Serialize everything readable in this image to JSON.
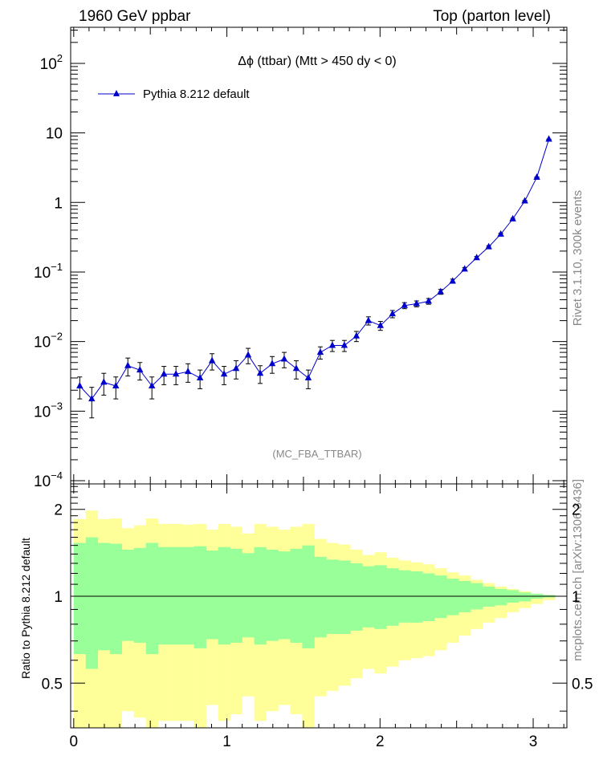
{
  "header": {
    "left": "1960 GeV ppbar",
    "right": "Top (parton level)"
  },
  "side": {
    "rivet": "Rivet 3.1.10,  300k events",
    "source": "mcplots.cern.ch [arXiv:1306.3436]"
  },
  "analysis_tag": "(MC_FBA_TTBAR)",
  "colors": {
    "series": "#0000cc",
    "band_outer": "#ffff99",
    "band_inner": "#99ff99",
    "muted_text": "#888888"
  },
  "chart_data": [
    {
      "type": "line",
      "title": "Δϕ (ttbar) (Mtt > 450 dy < 0)",
      "xlabel": "",
      "ylabel": "",
      "yscale": "log",
      "xlim": [
        -0.02,
        3.22
      ],
      "ylim": [
        9e-05,
        330
      ],
      "y_ticks": [
        {
          "value": 0.0001,
          "base": "10",
          "exp": "−4"
        },
        {
          "value": 0.001,
          "base": "10",
          "exp": "−3"
        },
        {
          "value": 0.01,
          "base": "10",
          "exp": "−2"
        },
        {
          "value": 0.1,
          "base": "10",
          "exp": "−1"
        },
        {
          "value": 1,
          "base": "1",
          "exp": ""
        },
        {
          "value": 10,
          "base": "10",
          "exp": ""
        },
        {
          "value": 100,
          "base": "10",
          "exp": "2"
        }
      ],
      "legend_position": "top-left",
      "series": [
        {
          "name": "Pythia 8.212 default",
          "marker": "triangle-up",
          "x": [
            0.0393,
            0.1178,
            0.1963,
            0.2749,
            0.3534,
            0.432,
            0.5105,
            0.589,
            0.6676,
            0.7461,
            0.8247,
            0.9032,
            0.9817,
            1.0603,
            1.1388,
            1.2174,
            1.2959,
            1.3744,
            1.453,
            1.5315,
            1.6101,
            1.6886,
            1.7671,
            1.8457,
            1.9242,
            2.0028,
            2.0813,
            2.1598,
            2.2384,
            2.3169,
            2.3955,
            2.474,
            2.5525,
            2.6311,
            2.7096,
            2.7882,
            2.8667,
            2.9452,
            3.0238,
            3.1023
          ],
          "y": [
            0.0023,
            0.0015,
            0.0026,
            0.0023,
            0.0045,
            0.0039,
            0.0023,
            0.0034,
            0.0034,
            0.0037,
            0.003,
            0.0053,
            0.0034,
            0.0041,
            0.0064,
            0.0035,
            0.0048,
            0.0056,
            0.0041,
            0.003,
            0.007,
            0.0088,
            0.0088,
            0.012,
            0.02,
            0.017,
            0.025,
            0.033,
            0.035,
            0.038,
            0.052,
            0.074,
            0.11,
            0.16,
            0.23,
            0.35,
            0.58,
            1.05,
            2.3,
            8.1
          ],
          "yerr": [
            0.0008,
            0.0007,
            0.0009,
            0.0008,
            0.0013,
            0.0011,
            0.0008,
            0.001,
            0.001,
            0.0011,
            0.0009,
            0.0014,
            0.001,
            0.0012,
            0.0016,
            0.001,
            0.0013,
            0.0014,
            0.0012,
            0.0009,
            0.0014,
            0.0016,
            0.0016,
            0.002,
            0.0027,
            0.0025,
            0.003,
            0.0033,
            0.0034,
            0.0036,
            0.0042,
            0.005,
            0.006,
            0.0072,
            0.0086,
            0.0105,
            0.013,
            0.017,
            0.025,
            0.047
          ]
        }
      ]
    },
    {
      "type": "area",
      "title": "",
      "xlabel": "",
      "ylabel": "Ratio to Pythia 8.212 default",
      "yscale": "log",
      "xlim": [
        -0.02,
        3.22
      ],
      "ylim": [
        0.35,
        2.45
      ],
      "x_ticks": [
        "0",
        "1",
        "2",
        "3"
      ],
      "y_ticks": [
        0.5,
        1,
        2
      ],
      "reference_line": 1,
      "bin_width": 0.0785,
      "x": [
        0.0393,
        0.1178,
        0.1963,
        0.2749,
        0.3534,
        0.432,
        0.5105,
        0.589,
        0.6676,
        0.7461,
        0.8247,
        0.9032,
        0.9817,
        1.0603,
        1.1388,
        1.2174,
        1.2959,
        1.3744,
        1.453,
        1.5315,
        1.6101,
        1.6886,
        1.7671,
        1.8457,
        1.9242,
        2.0028,
        2.0813,
        2.1598,
        2.2384,
        2.3169,
        2.3955,
        2.474,
        2.5525,
        2.6311,
        2.7096,
        2.7882,
        2.8667,
        2.9452,
        3.0238,
        3.1023
      ],
      "series": [
        {
          "name": "",
          "band": "outer",
          "low": [
            0.3,
            0.25,
            0.32,
            0.3,
            0.4,
            0.38,
            0.3,
            0.37,
            0.37,
            0.37,
            0.34,
            0.42,
            0.37,
            0.39,
            0.45,
            0.37,
            0.4,
            0.42,
            0.39,
            0.34,
            0.45,
            0.47,
            0.49,
            0.52,
            0.56,
            0.54,
            0.57,
            0.6,
            0.61,
            0.62,
            0.65,
            0.69,
            0.73,
            0.77,
            0.81,
            0.84,
            0.88,
            0.91,
            0.94,
            0.97
          ],
          "high": [
            1.85,
            1.98,
            1.85,
            1.86,
            1.72,
            1.76,
            1.86,
            1.78,
            1.78,
            1.77,
            1.78,
            1.7,
            1.78,
            1.74,
            1.65,
            1.78,
            1.74,
            1.7,
            1.74,
            1.78,
            1.58,
            1.53,
            1.51,
            1.45,
            1.39,
            1.42,
            1.36,
            1.33,
            1.31,
            1.29,
            1.25,
            1.21,
            1.18,
            1.14,
            1.11,
            1.08,
            1.06,
            1.04,
            1.02,
            1.01
          ]
        },
        {
          "name": "",
          "band": "inner",
          "low": [
            0.63,
            0.56,
            0.65,
            0.63,
            0.7,
            0.69,
            0.63,
            0.68,
            0.68,
            0.68,
            0.66,
            0.71,
            0.68,
            0.69,
            0.72,
            0.68,
            0.7,
            0.71,
            0.69,
            0.66,
            0.72,
            0.74,
            0.74,
            0.76,
            0.78,
            0.77,
            0.79,
            0.81,
            0.81,
            0.82,
            0.84,
            0.86,
            0.88,
            0.9,
            0.92,
            0.93,
            0.95,
            0.96,
            0.98,
            0.99
          ],
          "high": [
            1.53,
            1.6,
            1.53,
            1.52,
            1.45,
            1.47,
            1.53,
            1.48,
            1.48,
            1.48,
            1.49,
            1.44,
            1.48,
            1.46,
            1.41,
            1.48,
            1.45,
            1.43,
            1.46,
            1.5,
            1.37,
            1.34,
            1.33,
            1.3,
            1.27,
            1.28,
            1.25,
            1.23,
            1.22,
            1.2,
            1.18,
            1.15,
            1.13,
            1.11,
            1.08,
            1.06,
            1.05,
            1.03,
            1.02,
            1.01
          ]
        }
      ]
    }
  ]
}
